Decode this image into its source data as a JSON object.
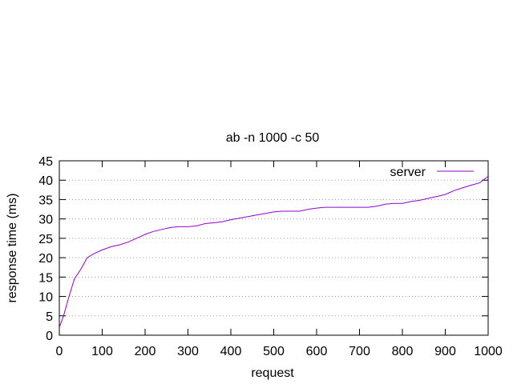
{
  "chart_data": {
    "type": "line",
    "title": "ab -n 1000 -c 50",
    "xlabel": "request",
    "ylabel": "response time (ms)",
    "xlim": [
      0,
      1000
    ],
    "ylim": [
      0,
      45
    ],
    "xticks": [
      0,
      100,
      200,
      300,
      400,
      500,
      600,
      700,
      800,
      900,
      1000
    ],
    "yticks": [
      0,
      5,
      10,
      15,
      20,
      25,
      30,
      35,
      40,
      45
    ],
    "grid": "horizontal dotted",
    "legend_position": "top-right",
    "series": [
      {
        "name": "server",
        "color": "#9400d3",
        "x": [
          0,
          10,
          20,
          35,
          50,
          65,
          80,
          100,
          120,
          140,
          160,
          180,
          200,
          220,
          240,
          260,
          280,
          300,
          320,
          340,
          360,
          380,
          400,
          420,
          440,
          460,
          480,
          500,
          520,
          540,
          560,
          580,
          600,
          620,
          640,
          660,
          680,
          700,
          720,
          740,
          760,
          780,
          800,
          820,
          840,
          860,
          880,
          900,
          920,
          940,
          960,
          980,
          1000
        ],
        "y": [
          2,
          5,
          9,
          14.5,
          17,
          20,
          21,
          22,
          22.8,
          23.3,
          24,
          25,
          26,
          26.8,
          27.3,
          27.8,
          28,
          28,
          28.2,
          28.8,
          29,
          29.3,
          29.8,
          30.2,
          30.6,
          31,
          31.4,
          31.8,
          32,
          32,
          32,
          32.5,
          32.8,
          33,
          33,
          33,
          33,
          33,
          33,
          33.3,
          33.8,
          34,
          34,
          34.5,
          34.8,
          35.3,
          35.8,
          36.3,
          37.3,
          38,
          38.7,
          39.3,
          41
        ]
      }
    ]
  }
}
